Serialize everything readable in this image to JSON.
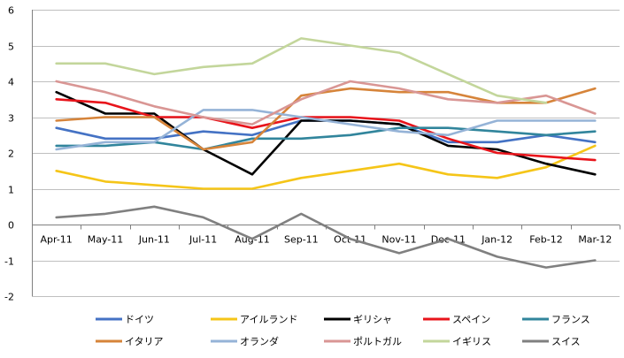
{
  "chart_data": {
    "type": "line",
    "title": "",
    "xlabel": "",
    "ylabel": "",
    "categories": [
      "Apr-11",
      "May-11",
      "Jun-11",
      "Jul-11",
      "Aug-11",
      "Sep-11",
      "Oct-11",
      "Nov-11",
      "Dec-11",
      "Jan-12",
      "Feb-12",
      "Mar-12"
    ],
    "ylim": [
      -2,
      6
    ],
    "yticks": [
      -2,
      -1,
      0,
      1,
      2,
      3,
      4,
      5,
      6
    ],
    "grid": true,
    "legend_position": "bottom",
    "series": [
      {
        "name": "ドイツ",
        "color": "#4472C4",
        "values": [
          2.7,
          2.4,
          2.4,
          2.6,
          2.5,
          2.9,
          2.9,
          2.8,
          2.3,
          2.3,
          2.5,
          2.3
        ]
      },
      {
        "name": "アイルランド",
        "color": "#F5C518",
        "values": [
          1.5,
          1.2,
          1.1,
          1.0,
          1.0,
          1.3,
          1.5,
          1.7,
          1.4,
          1.3,
          1.6,
          2.2
        ]
      },
      {
        "name": "ギリシャ",
        "color": "#000000",
        "values": [
          3.7,
          3.1,
          3.1,
          2.1,
          1.4,
          2.9,
          2.9,
          2.8,
          2.2,
          2.1,
          1.7,
          1.4
        ]
      },
      {
        "name": "スペイン",
        "color": "#E8141B",
        "values": [
          3.5,
          3.4,
          3.0,
          3.0,
          2.7,
          3.0,
          3.0,
          2.9,
          2.4,
          2.0,
          1.9,
          1.8
        ]
      },
      {
        "name": "フランス",
        "color": "#31859C",
        "values": [
          2.2,
          2.2,
          2.3,
          2.1,
          2.4,
          2.4,
          2.5,
          2.7,
          2.7,
          2.6,
          2.5,
          2.6
        ]
      },
      {
        "name": "イタリア",
        "color": "#D6843A",
        "values": [
          2.9,
          3.0,
          3.0,
          2.1,
          2.3,
          3.6,
          3.8,
          3.7,
          3.7,
          3.4,
          3.4,
          3.8
        ]
      },
      {
        "name": "オランダ",
        "color": "#95B3D7",
        "values": [
          2.1,
          2.3,
          2.3,
          3.2,
          3.2,
          3.0,
          2.8,
          2.6,
          2.5,
          2.9,
          2.9,
          2.9
        ]
      },
      {
        "name": "ポルトガル",
        "color": "#D99694",
        "values": [
          4.0,
          3.7,
          3.3,
          3.0,
          2.8,
          3.5,
          4.0,
          3.8,
          3.5,
          3.4,
          3.6,
          3.1
        ]
      },
      {
        "name": "イギリス",
        "color": "#C3D69B",
        "values": [
          4.5,
          4.5,
          4.2,
          4.4,
          4.5,
          5.2,
          5.0,
          4.8,
          4.2,
          3.6,
          3.4,
          null
        ]
      },
      {
        "name": "スイス",
        "color": "#808080",
        "values": [
          0.2,
          0.3,
          0.5,
          0.2,
          -0.4,
          0.3,
          -0.4,
          -0.8,
          -0.4,
          -0.9,
          -1.2,
          -1.0
        ]
      }
    ]
  }
}
